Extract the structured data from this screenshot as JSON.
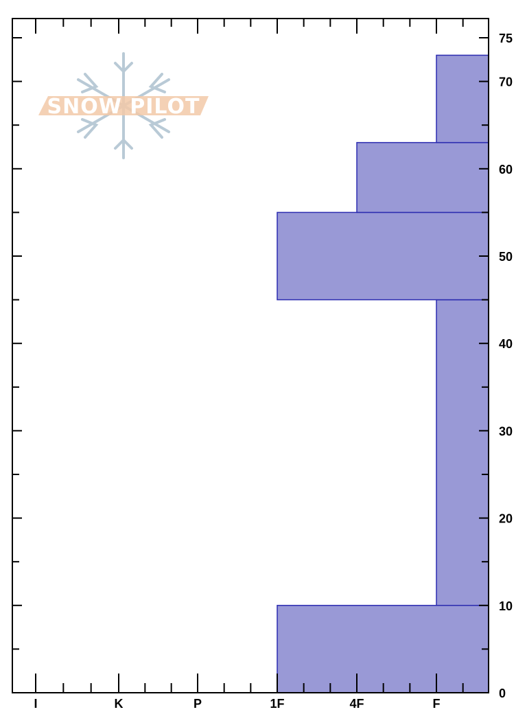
{
  "chart_data": {
    "type": "bar",
    "orientation": "horizontal",
    "description_free": true,
    "title": "",
    "xlabel": "",
    "ylabel": "",
    "x_categories": [
      "I",
      "K",
      "P",
      "1F",
      "4F",
      "F"
    ],
    "ylim": [
      0,
      75
    ],
    "y_ticks": [
      0,
      10,
      20,
      30,
      40,
      50,
      60,
      70,
      75
    ],
    "grid": false,
    "layers": [
      {
        "bottom": 0,
        "top": 10,
        "hardness": "1F"
      },
      {
        "bottom": 10,
        "top": 45,
        "hardness": "F"
      },
      {
        "bottom": 45,
        "top": 55,
        "hardness": "1F"
      },
      {
        "bottom": 55,
        "top": 63,
        "hardness": "4F"
      },
      {
        "bottom": 63,
        "top": 73,
        "hardness": "F"
      }
    ],
    "bar_fill": "#9999d6",
    "bar_stroke": "#2b2bb0"
  },
  "watermark": {
    "text": "SNOW PILOT",
    "icon": "snowflake-icon",
    "band_color": "#f2c9a8",
    "flake_color": "#b9cad6"
  }
}
